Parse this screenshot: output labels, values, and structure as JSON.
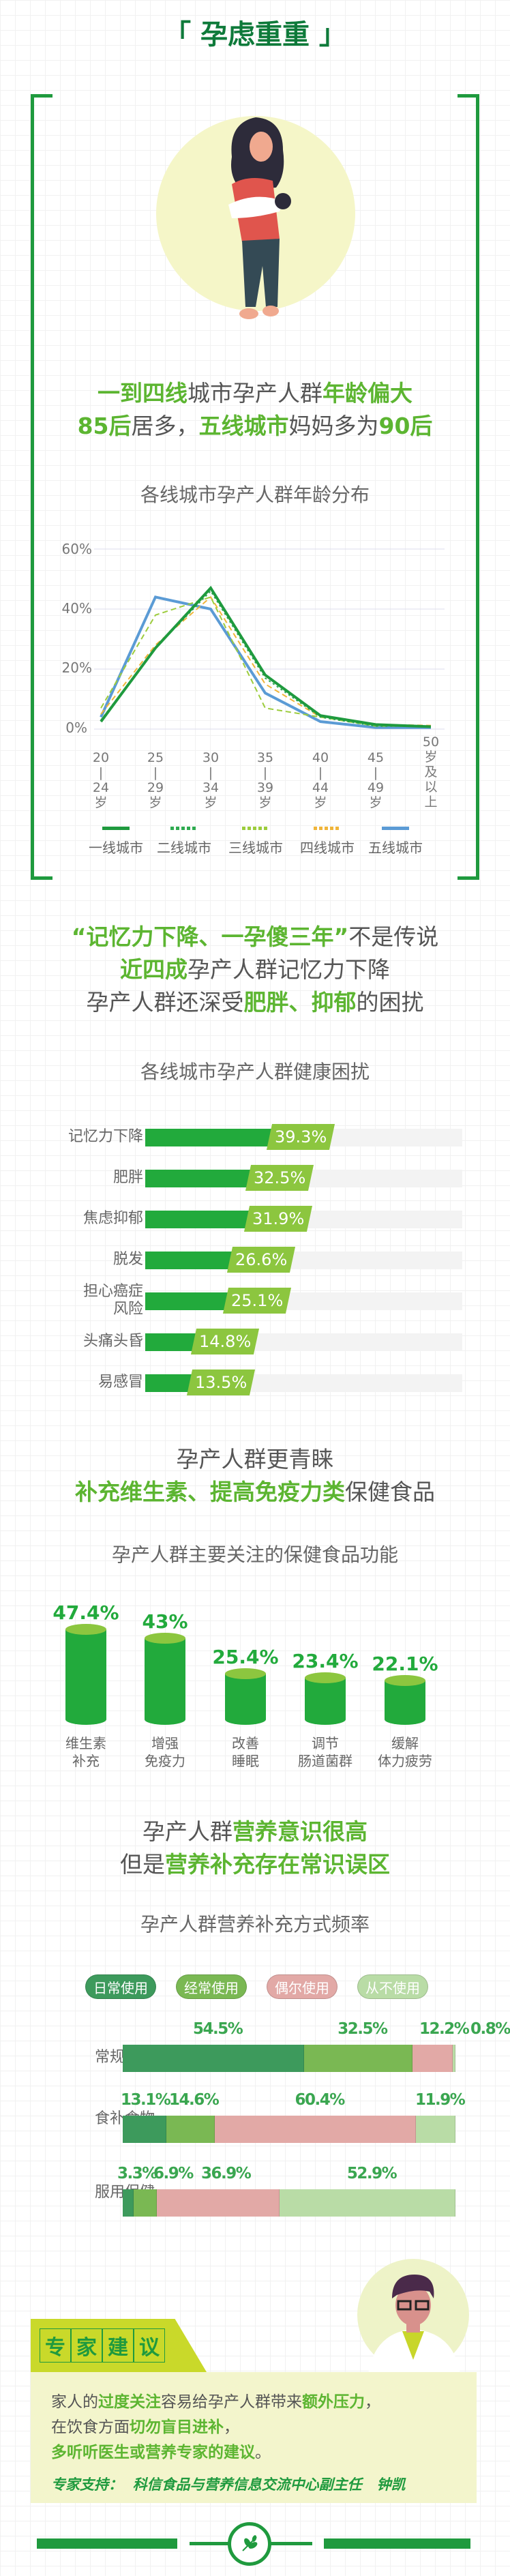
{
  "title": "孕虑重重",
  "section1": {
    "headline_line1": [
      {
        "t": "一到四线",
        "h": true
      },
      {
        "t": "城市孕产人群",
        "h": false
      },
      {
        "t": "年龄偏大",
        "h": true
      }
    ],
    "headline_line2": [
      {
        "t": "85后",
        "h": true
      },
      {
        "t": "居多，",
        "h": false
      },
      {
        "t": "五线城市",
        "h": true
      },
      {
        "t": "妈妈多为",
        "h": false
      },
      {
        "t": "90后",
        "h": true
      }
    ]
  },
  "chart_data": [
    {
      "type": "line",
      "title": "各线城市孕产人群年龄分布",
      "categories": [
        "20-24岁",
        "25-29岁",
        "30-34岁",
        "35-39岁",
        "40-44岁",
        "45-49岁",
        "50岁及以上"
      ],
      "category_lines": [
        [
          "20",
          "|",
          "24",
          "岁"
        ],
        [
          "25",
          "|",
          "29",
          "岁"
        ],
        [
          "30",
          "|",
          "34",
          "岁"
        ],
        [
          "35",
          "|",
          "39",
          "岁"
        ],
        [
          "40",
          "|",
          "44",
          "岁"
        ],
        [
          "45",
          "|",
          "49",
          "岁"
        ],
        [
          "50",
          "岁",
          "及",
          "以",
          "上"
        ]
      ],
      "yticks": [
        "60%",
        "40%",
        "20%",
        "0%"
      ],
      "ylim": [
        0,
        60
      ],
      "grid": true,
      "legend": "bottom",
      "series": [
        {
          "name": "一线城市",
          "values": [
            2.5,
            27,
            47,
            18,
            4.5,
            1.5,
            0.8
          ],
          "color": "#1f9a3e",
          "style": "solid"
        },
        {
          "name": "二线城市",
          "values": [
            3,
            27,
            46,
            17,
            4,
            1,
            1
          ],
          "color": "#2eaa50",
          "style": "dotted"
        },
        {
          "name": "三线城市",
          "values": [
            7,
            38,
            44,
            7,
            4,
            1,
            1
          ],
          "color": "#9ccc3c",
          "style": "dashed"
        },
        {
          "name": "四线城市",
          "values": [
            5,
            28,
            44,
            15,
            4,
            1.5,
            1.2
          ],
          "color": "#f0b53a",
          "style": "dashed"
        },
        {
          "name": "五线城市",
          "values": [
            4,
            44,
            40,
            12,
            2.5,
            0.5,
            0.5
          ],
          "color": "#5b9bd5",
          "style": "solid"
        }
      ]
    },
    {
      "type": "bar",
      "title": "各线城市孕产人群健康困扰",
      "categories": [
        "记忆力下降",
        "肥胖",
        "焦虑抑郁",
        "脱发",
        "担心癌症风险",
        "头痛头昏",
        "易感冒"
      ],
      "category_lines": [
        [
          "记忆力下降"
        ],
        [
          "肥胖"
        ],
        [
          "焦虑抑郁"
        ],
        [
          "脱发"
        ],
        [
          "担心癌症",
          "风险"
        ],
        [
          "头痛头昏"
        ],
        [
          "易感冒"
        ]
      ],
      "values": [
        39.3,
        32.5,
        31.9,
        26.6,
        25.1,
        14.8,
        13.5
      ],
      "labels": [
        "39.3%",
        "32.5%",
        "31.9%",
        "26.6%",
        "25.1%",
        "14.8%",
        "13.5%"
      ]
    },
    {
      "type": "bar",
      "title": "孕产人群主要关注的保健食品功能",
      "categories": [
        "维生素补充",
        "增强免疫力",
        "改善睡眠",
        "调节肠道菌群",
        "缓解体力疲劳"
      ],
      "category_lines": [
        [
          "维生素",
          "补充"
        ],
        [
          "增强",
          "免疫力"
        ],
        [
          "改善",
          "睡眠"
        ],
        [
          "调节",
          "肠道菌群"
        ],
        [
          "缓解",
          "体力疲劳"
        ]
      ],
      "values": [
        47.4,
        43,
        25.4,
        23.4,
        22.1
      ],
      "labels": [
        "47.4%",
        "43%",
        "25.4%",
        "23.4%",
        "22.1%"
      ]
    },
    {
      "type": "bar",
      "stacked": true,
      "title": "孕产人群营养补充方式频率",
      "legend": "top",
      "categories": [
        "常规饮食",
        "食补食物强化",
        "服用保健食品"
      ],
      "category_lines": [
        [
          "常规饮食"
        ],
        [
          "食补食物",
          "强化"
        ],
        [
          "服用保健",
          "食品"
        ]
      ],
      "series": [
        {
          "name": "日常使用",
          "values": [
            54.5,
            13.1,
            3.3
          ],
          "labels": [
            "54.5%",
            "13.1%",
            "3.3%"
          ],
          "color": "#3d9a5c"
        },
        {
          "name": "经常使用",
          "values": [
            32.5,
            14.6,
            6.9
          ],
          "labels": [
            "32.5%",
            "14.6%",
            "6.9%"
          ],
          "color": "#7ab853"
        },
        {
          "name": "偶尔使用",
          "values": [
            12.2,
            60.4,
            36.9
          ],
          "labels": [
            "12.2%",
            "60.4%",
            "36.9%"
          ],
          "color": "#e2a9a6"
        },
        {
          "name": "从不使用",
          "values": [
            0.8,
            11.9,
            52.9
          ],
          "labels": [
            "0.8%",
            "11.9%",
            "52.9%"
          ],
          "color": "#b9dca6"
        }
      ]
    }
  ],
  "section2": {
    "line1": [
      {
        "t": "“记忆力下降、一孕傻三年”",
        "h": true
      },
      {
        "t": "不是传说",
        "h": false
      }
    ],
    "line2": [
      {
        "t": "近四成",
        "h": true
      },
      {
        "t": "孕产人群记忆力下降",
        "h": false
      }
    ],
    "line3": [
      {
        "t": "孕产人群还深受",
        "h": false
      },
      {
        "t": "肥胖、抑郁",
        "h": true
      },
      {
        "t": "的困扰",
        "h": false
      }
    ]
  },
  "section3": {
    "line1": [
      {
        "t": "孕产人群更青睐",
        "h": false
      }
    ],
    "line2": [
      {
        "t": "补充维生素、提高免疫力类",
        "h": true
      },
      {
        "t": "保健食品",
        "h": false
      }
    ]
  },
  "section4": {
    "line1": [
      {
        "t": "孕产人群",
        "h": false
      },
      {
        "t": "营养意识很高",
        "h": true
      }
    ],
    "line2": [
      {
        "t": "但是",
        "h": false
      },
      {
        "t": "营养补充存在常识误区",
        "h": true
      }
    ]
  },
  "expert": {
    "header": [
      "专",
      "家",
      "建",
      "议"
    ],
    "line1": [
      {
        "t": "家人的",
        "h": false
      },
      {
        "t": "过度关注",
        "h": true
      },
      {
        "t": "容易给孕产人群带来",
        "h": false
      },
      {
        "t": "额外压力",
        "h": true
      },
      {
        "t": "，",
        "h": false
      }
    ],
    "line2": [
      {
        "t": "在饮食方面",
        "h": false
      },
      {
        "t": "切勿盲目进补",
        "h": true
      },
      {
        "t": "，",
        "h": false
      }
    ],
    "line3": [
      {
        "t": "多听听医生或营养专家的建议",
        "h": true
      },
      {
        "t": "。",
        "h": false
      }
    ],
    "support": "专家支持：  科信食品与营养信息交流中心副主任   钟凯"
  },
  "colors": {
    "frame": "#1f9a3e",
    "highlight": "#5cb531",
    "bar": "#22aa3c",
    "badge": "#8cc63f",
    "title": "#0e7a3a"
  }
}
